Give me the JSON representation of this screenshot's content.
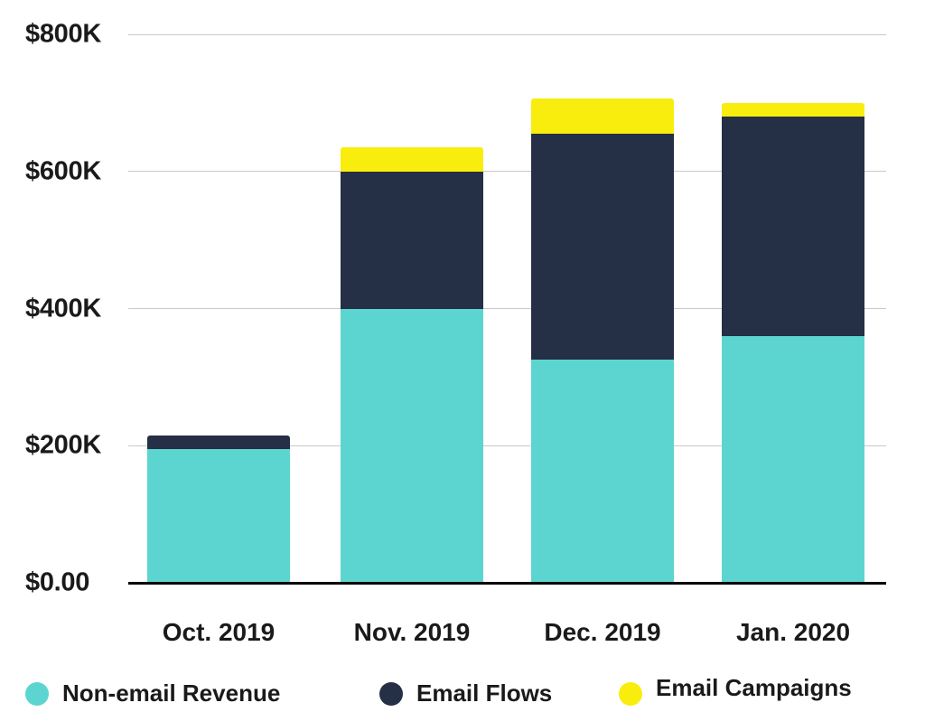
{
  "chart_data": {
    "type": "bar",
    "stacked": true,
    "title": "",
    "categories": [
      "Oct. 2019",
      "Nov. 2019",
      "Dec. 2019",
      "Jan. 2020"
    ],
    "series": [
      {
        "name": "Non-email Revenue",
        "color": "#5CD5D0",
        "values": [
          195,
          400,
          325,
          360
        ]
      },
      {
        "name": "Email Flows",
        "color": "#252F45",
        "values": [
          20,
          200,
          330,
          320
        ]
      },
      {
        "name": "Email Campaigns",
        "color": "#F9ED0D",
        "values": [
          0,
          35,
          52,
          20
        ]
      }
    ],
    "values_unit": "USD thousands",
    "y_axis": {
      "min": 0,
      "max": 800,
      "tick_interval": 200,
      "tick_labels": [
        "$0.00",
        "$200K",
        "$400K",
        "$600K",
        "$800K"
      ]
    },
    "grid": "horizontal",
    "legend_position": "bottom"
  },
  "colors": {
    "background": "#FFFFFF",
    "gridline": "#C9C9C9",
    "axis_line": "#000000",
    "text": "#1A1A1A"
  }
}
